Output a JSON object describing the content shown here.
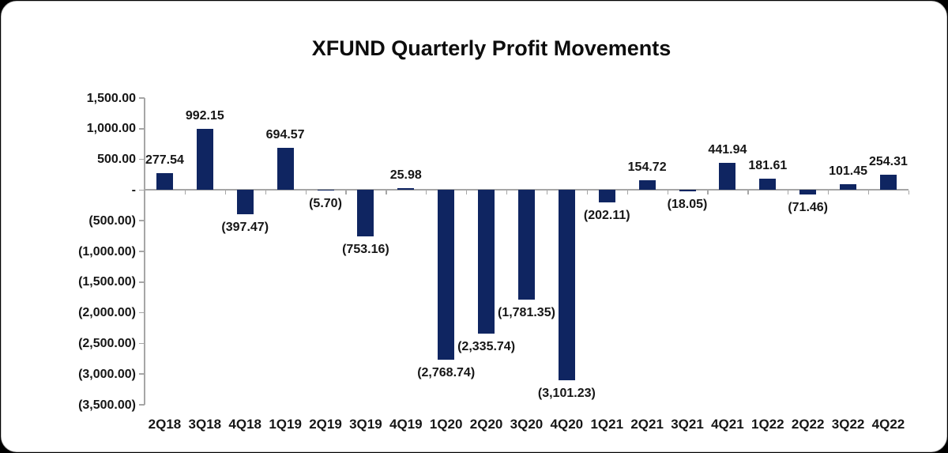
{
  "title": "XFUND Quarterly Profit Movements",
  "chart_data": {
    "type": "bar",
    "title": "XFUND Quarterly Profit Movements",
    "categories": [
      "2Q18",
      "3Q18",
      "4Q18",
      "1Q19",
      "2Q19",
      "3Q19",
      "4Q19",
      "1Q20",
      "2Q20",
      "3Q20",
      "4Q20",
      "1Q21",
      "2Q21",
      "3Q21",
      "4Q21",
      "1Q22",
      "2Q22",
      "3Q22",
      "4Q22"
    ],
    "values": [
      277.54,
      992.15,
      -397.47,
      694.57,
      -5.7,
      -753.16,
      25.98,
      -2768.74,
      -2335.74,
      -1781.35,
      -3101.23,
      -202.11,
      154.72,
      -18.05,
      441.94,
      181.61,
      -71.46,
      101.45,
      254.31
    ],
    "data_labels": [
      "277.54",
      "992.15",
      "(397.47)",
      "694.57",
      "(5.70)",
      "(753.16)",
      "25.98",
      "(2,768.74)",
      "(2,335.74)",
      "(1,781.35)",
      "(3,101.23)",
      "(202.11)",
      "154.72",
      "(18.05)",
      "441.94",
      "181.61",
      "(71.46)",
      "101.45",
      "254.31"
    ],
    "y_axis": [
      {
        "value": 1500,
        "label": "1,500.00"
      },
      {
        "value": 1000,
        "label": "1,000.00"
      },
      {
        "value": 500,
        "label": "500.00"
      },
      {
        "value": 0,
        "label": "-"
      },
      {
        "value": -500,
        "label": "(500.00)"
      },
      {
        "value": -1000,
        "label": "(1,000.00)"
      },
      {
        "value": -1500,
        "label": "(1,500.00)"
      },
      {
        "value": -2000,
        "label": "(2,000.00)"
      },
      {
        "value": -2500,
        "label": "(2,500.00)"
      },
      {
        "value": -3000,
        "label": "(3,000.00)"
      },
      {
        "value": -3500,
        "label": "(3,500.00)"
      }
    ],
    "ylim": [
      -3500,
      1500
    ],
    "y_step": 500,
    "xlabel": "",
    "ylabel": "",
    "grid": false,
    "legend": "none",
    "colors": {
      "bar": "#0f2561",
      "axis": "#a6a6a6",
      "text": "#161616",
      "card_background": "#ffffff",
      "page_background": "#000000"
    }
  }
}
